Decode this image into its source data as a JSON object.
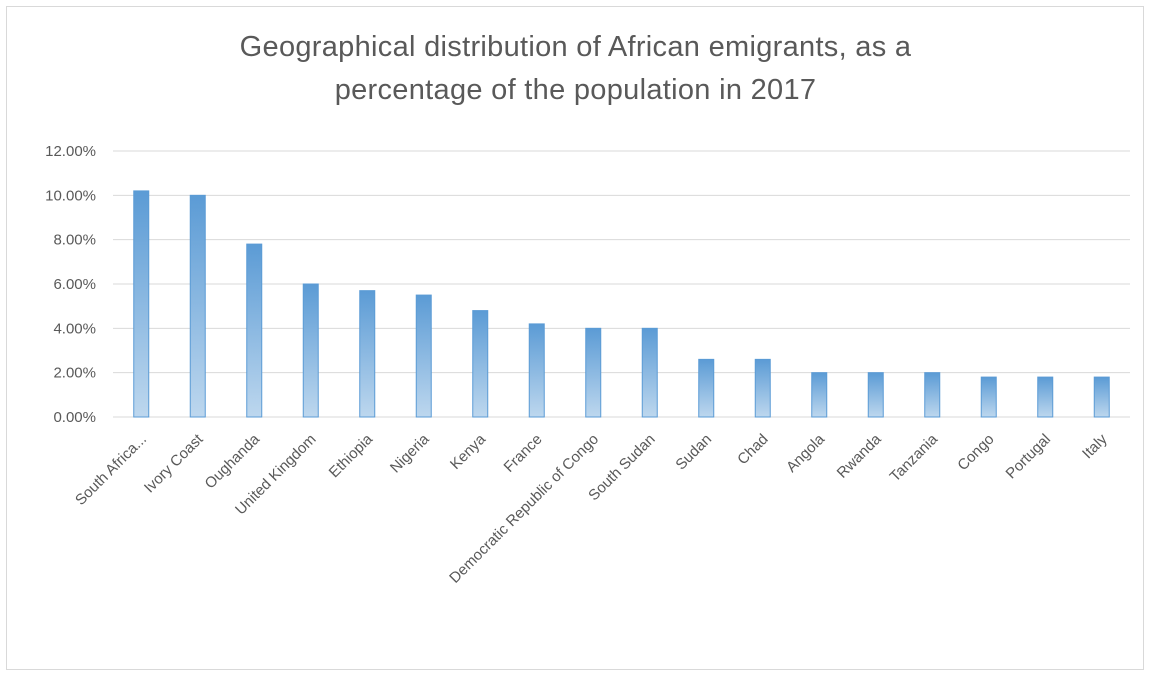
{
  "chart_data": {
    "type": "bar",
    "title_lines": [
      "Geographical distribution of African emigrants, as a",
      "percentage of the population in 2017"
    ],
    "categories": [
      "South Africa...",
      "Ivory Coast",
      "Oughanda",
      "United Kingdom",
      "Ethiopia",
      "Nigeria",
      "Kenya",
      "France",
      "Democratic Republic of Congo",
      "South Sudan",
      "Sudan",
      "Chad",
      "Angola",
      "Rwanda",
      "Tanzania",
      "Congo",
      "Portugal",
      "Italy"
    ],
    "values": [
      10.2,
      10.0,
      7.8,
      6.0,
      5.7,
      5.5,
      4.8,
      4.2,
      4.0,
      4.0,
      2.6,
      2.6,
      2.0,
      2.0,
      2.0,
      1.8,
      1.8,
      1.8
    ],
    "ylim": [
      0,
      12
    ],
    "yticks": [
      "0.00%",
      "2.00%",
      "4.00%",
      "6.00%",
      "8.00%",
      "10.00%",
      "12.00%"
    ],
    "xlabel": "",
    "ylabel": "",
    "grid": true,
    "legend": "none",
    "colors": {
      "bar_top": "#5b9bd5",
      "bar_bottom": "#bdd7ee",
      "bar_edge": "#5b9bd5",
      "grid": "#d9d9d9",
      "text": "#595959"
    }
  }
}
